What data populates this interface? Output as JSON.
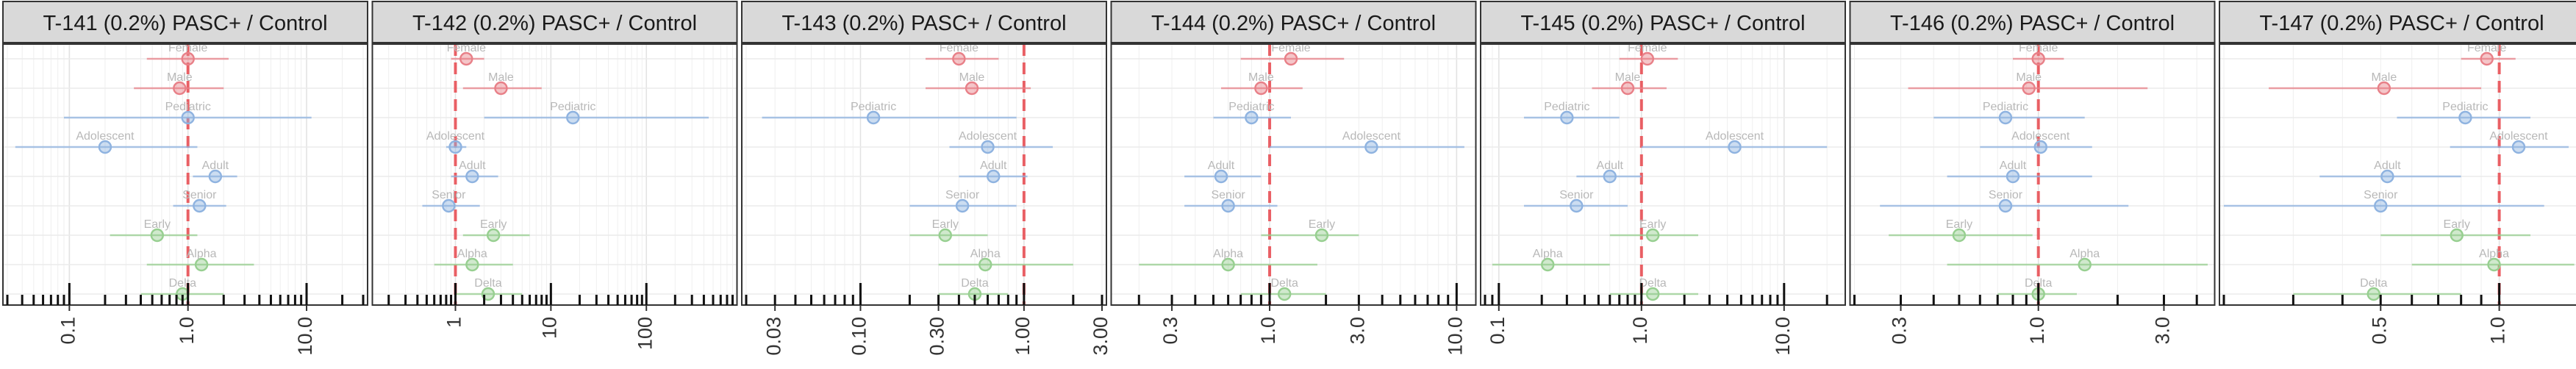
{
  "chart_data": [
    {
      "type": "scatter",
      "title": "T-141 (0.2%) PASC+ / Control",
      "xscale": "log",
      "xlim": [
        0.03,
        30
      ],
      "ticks": [
        0.1,
        1.0,
        10.0
      ],
      "tick_labels": [
        "0.1",
        "1.0",
        "10.0"
      ],
      "reference_x": 1.0,
      "points": [
        {
          "label": "Female",
          "group": "sex",
          "value": 1.0,
          "lower": 0.45,
          "upper": 2.2
        },
        {
          "label": "Male",
          "group": "sex",
          "value": 0.85,
          "lower": 0.35,
          "upper": 2.0
        },
        {
          "label": "Pediatric",
          "group": "age",
          "value": 1.0,
          "lower": 0.09,
          "upper": 11
        },
        {
          "label": "Adolescent",
          "group": "age",
          "value": 0.2,
          "lower": 0.035,
          "upper": 1.2
        },
        {
          "label": "Adult",
          "group": "age",
          "value": 1.7,
          "lower": 1.1,
          "upper": 2.6
        },
        {
          "label": "Senior",
          "group": "age",
          "value": 1.25,
          "lower": 0.75,
          "upper": 2.1
        },
        {
          "label": "Early",
          "group": "variant",
          "value": 0.55,
          "lower": 0.22,
          "upper": 1.2
        },
        {
          "label": "Alpha",
          "group": "variant",
          "value": 1.3,
          "lower": 0.45,
          "upper": 3.6
        },
        {
          "label": "Delta",
          "group": "variant",
          "value": 0.9,
          "lower": 0.4,
          "upper": 2.0
        }
      ]
    },
    {
      "type": "scatter",
      "title": "T-142 (0.2%) PASC+ / Control",
      "xscale": "log",
      "xlim": [
        0.15,
        800
      ],
      "ticks": [
        1,
        10,
        100
      ],
      "tick_labels": [
        "1",
        "10",
        "100"
      ],
      "reference_x": 1.0,
      "points": [
        {
          "label": "Female",
          "group": "sex",
          "value": 1.3,
          "lower": 0.9,
          "upper": 2.0
        },
        {
          "label": "Male",
          "group": "sex",
          "value": 3.0,
          "lower": 1.2,
          "upper": 8.0
        },
        {
          "label": "Pediatric",
          "group": "age",
          "value": 17,
          "lower": 2.0,
          "upper": 450
        },
        {
          "label": "Adolescent",
          "group": "age",
          "value": 1.0,
          "lower": 0.8,
          "upper": 1.3
        },
        {
          "label": "Adult",
          "group": "age",
          "value": 1.5,
          "lower": 0.9,
          "upper": 2.8
        },
        {
          "label": "Senior",
          "group": "age",
          "value": 0.85,
          "lower": 0.45,
          "upper": 1.8
        },
        {
          "label": "Early",
          "group": "variant",
          "value": 2.5,
          "lower": 1.2,
          "upper": 6.0
        },
        {
          "label": "Alpha",
          "group": "variant",
          "value": 1.5,
          "lower": 0.6,
          "upper": 4.0
        },
        {
          "label": "Delta",
          "group": "variant",
          "value": 2.2,
          "lower": 1.0,
          "upper": 5.0
        }
      ]
    },
    {
      "type": "scatter",
      "title": "T-143 (0.2%) PASC+ / Control",
      "xscale": "log",
      "xlim": [
        0.02,
        3.0
      ],
      "ticks": [
        0.03,
        0.1,
        0.3,
        1.0,
        3.0
      ],
      "tick_labels": [
        "0.03",
        "0.10",
        "0.30",
        "1.00",
        "3.00"
      ],
      "reference_x": 1.0,
      "points": [
        {
          "label": "Female",
          "group": "sex",
          "value": 0.4,
          "lower": 0.25,
          "upper": 0.7
        },
        {
          "label": "Male",
          "group": "sex",
          "value": 0.48,
          "lower": 0.25,
          "upper": 1.1
        },
        {
          "label": "Pediatric",
          "group": "age",
          "value": 0.12,
          "lower": 0.025,
          "upper": 0.9
        },
        {
          "label": "Adolescent",
          "group": "age",
          "value": 0.6,
          "lower": 0.35,
          "upper": 1.5
        },
        {
          "label": "Adult",
          "group": "age",
          "value": 0.65,
          "lower": 0.4,
          "upper": 1.05
        },
        {
          "label": "Senior",
          "group": "age",
          "value": 0.42,
          "lower": 0.2,
          "upper": 0.9
        },
        {
          "label": "Early",
          "group": "variant",
          "value": 0.33,
          "lower": 0.2,
          "upper": 0.6
        },
        {
          "label": "Alpha",
          "group": "variant",
          "value": 0.58,
          "lower": 0.3,
          "upper": 2.0
        },
        {
          "label": "Delta",
          "group": "variant",
          "value": 0.5,
          "lower": 0.3,
          "upper": 0.8
        }
      ]
    },
    {
      "type": "scatter",
      "title": "T-144 (0.2%) PASC+ / Control",
      "xscale": "log",
      "xlim": [
        0.15,
        12
      ],
      "ticks": [
        0.3,
        1.0,
        3.0,
        10.0
      ],
      "tick_labels": [
        "0.3",
        "1.0",
        "3.0",
        "10.0"
      ],
      "reference_x": 1.0,
      "points": [
        {
          "label": "Female",
          "group": "sex",
          "value": 1.3,
          "lower": 0.7,
          "upper": 2.5
        },
        {
          "label": "Male",
          "group": "sex",
          "value": 0.9,
          "lower": 0.55,
          "upper": 1.5
        },
        {
          "label": "Pediatric",
          "group": "age",
          "value": 0.8,
          "lower": 0.5,
          "upper": 1.3
        },
        {
          "label": "Adolescent",
          "group": "age",
          "value": 3.5,
          "lower": 1.0,
          "upper": 11
        },
        {
          "label": "Adult",
          "group": "age",
          "value": 0.55,
          "lower": 0.35,
          "upper": 0.9
        },
        {
          "label": "Senior",
          "group": "age",
          "value": 0.6,
          "lower": 0.35,
          "upper": 1.1
        },
        {
          "label": "Early",
          "group": "variant",
          "value": 1.9,
          "lower": 0.9,
          "upper": 3.0
        },
        {
          "label": "Alpha",
          "group": "variant",
          "value": 0.6,
          "lower": 0.2,
          "upper": 1.8
        },
        {
          "label": "Delta",
          "group": "variant",
          "value": 1.2,
          "lower": 0.7,
          "upper": 2.0
        }
      ]
    },
    {
      "type": "scatter",
      "title": "T-145 (0.2%) PASC+ / Control",
      "xscale": "log",
      "xlim": [
        0.08,
        25
      ],
      "ticks": [
        0.1,
        1.0,
        10.0
      ],
      "tick_labels": [
        "0.1",
        "1.0",
        "10.0"
      ],
      "reference_x": 1.0,
      "points": [
        {
          "label": "Female",
          "group": "sex",
          "value": 1.1,
          "lower": 0.7,
          "upper": 1.8
        },
        {
          "label": "Male",
          "group": "sex",
          "value": 0.8,
          "lower": 0.45,
          "upper": 1.5
        },
        {
          "label": "Pediatric",
          "group": "age",
          "value": 0.3,
          "lower": 0.15,
          "upper": 0.7
        },
        {
          "label": "Adolescent",
          "group": "age",
          "value": 4.5,
          "lower": 1.0,
          "upper": 20
        },
        {
          "label": "Adult",
          "group": "age",
          "value": 0.6,
          "lower": 0.35,
          "upper": 1.0
        },
        {
          "label": "Senior",
          "group": "age",
          "value": 0.35,
          "lower": 0.15,
          "upper": 0.8
        },
        {
          "label": "Early",
          "group": "variant",
          "value": 1.2,
          "lower": 0.6,
          "upper": 2.5
        },
        {
          "label": "Alpha",
          "group": "variant",
          "value": 0.22,
          "lower": 0.09,
          "upper": 0.6
        },
        {
          "label": "Delta",
          "group": "variant",
          "value": 1.2,
          "lower": 0.6,
          "upper": 2.5
        }
      ]
    },
    {
      "type": "scatter",
      "title": "T-146 (0.2%) PASC+ / Control",
      "xscale": "log",
      "xlim": [
        0.2,
        4.5
      ],
      "ticks": [
        0.3,
        1.0,
        3.0
      ],
      "tick_labels": [
        "0.3",
        "1.0",
        "3.0"
      ],
      "reference_x": 1.0,
      "points": [
        {
          "label": "Female",
          "group": "sex",
          "value": 1.0,
          "lower": 0.8,
          "upper": 1.25
        },
        {
          "label": "Male",
          "group": "sex",
          "value": 0.92,
          "lower": 0.32,
          "upper": 2.6
        },
        {
          "label": "Pediatric",
          "group": "age",
          "value": 0.75,
          "lower": 0.4,
          "upper": 1.5
        },
        {
          "label": "Adolescent",
          "group": "age",
          "value": 1.02,
          "lower": 0.6,
          "upper": 1.6
        },
        {
          "label": "Adult",
          "group": "age",
          "value": 0.8,
          "lower": 0.45,
          "upper": 1.6
        },
        {
          "label": "Senior",
          "group": "age",
          "value": 0.75,
          "lower": 0.25,
          "upper": 2.2
        },
        {
          "label": "Early",
          "group": "variant",
          "value": 0.5,
          "lower": 0.27,
          "upper": 0.95
        },
        {
          "label": "Alpha",
          "group": "variant",
          "value": 1.5,
          "lower": 0.45,
          "upper": 4.4
        },
        {
          "label": "Delta",
          "group": "variant",
          "value": 1.0,
          "lower": 0.7,
          "upper": 1.4
        }
      ]
    },
    {
      "type": "scatter",
      "title": "T-147 (0.2%) PASC+ / Control",
      "xscale": "log",
      "xlim": [
        0.2,
        1.6
      ],
      "ticks": [
        0.5,
        1.0
      ],
      "tick_labels": [
        "0.5",
        "1.0"
      ],
      "reference_x": 1.0,
      "points": [
        {
          "label": "Female",
          "group": "sex",
          "value": 0.93,
          "lower": 0.8,
          "upper": 1.1
        },
        {
          "label": "Male",
          "group": "sex",
          "value": 0.51,
          "lower": 0.26,
          "upper": 0.9
        },
        {
          "label": "Pediatric",
          "group": "age",
          "value": 0.82,
          "lower": 0.55,
          "upper": 1.2
        },
        {
          "label": "Adolescent",
          "group": "age",
          "value": 1.12,
          "lower": 0.75,
          "upper": 1.5
        },
        {
          "label": "Adult",
          "group": "age",
          "value": 0.52,
          "lower": 0.35,
          "upper": 0.8
        },
        {
          "label": "Senior",
          "group": "age",
          "value": 0.5,
          "lower": 0.2,
          "upper": 1.3
        },
        {
          "label": "Early",
          "group": "variant",
          "value": 0.78,
          "lower": 0.5,
          "upper": 1.2
        },
        {
          "label": "Alpha",
          "group": "variant",
          "value": 0.97,
          "lower": 0.6,
          "upper": 1.55
        },
        {
          "label": "Delta",
          "group": "variant",
          "value": 0.48,
          "lower": 0.3,
          "upper": 0.8
        }
      ]
    }
  ],
  "group_colors": {
    "sex": "#e88088",
    "age": "#8fb3e0",
    "variant": "#97cf90"
  },
  "reference_line_color": "#e8474d",
  "grid": true
}
